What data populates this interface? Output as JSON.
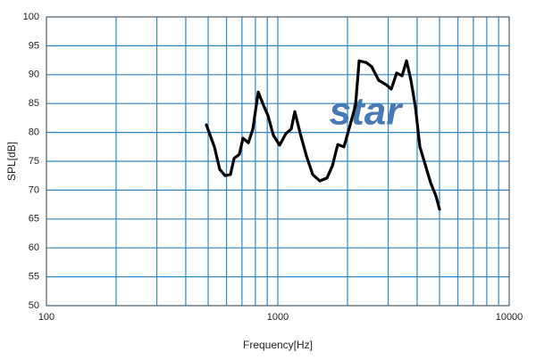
{
  "chart_data": {
    "type": "line",
    "x_label": "Frequency[Hz]",
    "y_label": "SPL[dB]",
    "watermark": "star",
    "xscale": "log",
    "grid": true,
    "xlim": [
      100,
      10000
    ],
    "ylim": [
      50,
      100
    ],
    "xticks": [
      100,
      1000,
      10000
    ],
    "x_minor_grid": [
      200,
      300,
      400,
      500,
      600,
      700,
      800,
      900,
      2000,
      3000,
      4000,
      5000,
      6000,
      7000,
      8000,
      9000
    ],
    "yticks": [
      50,
      55,
      60,
      65,
      70,
      75,
      80,
      85,
      90,
      95,
      100
    ],
    "series": [
      {
        "color": "#000000",
        "x": [
          491,
          532,
          561,
          592,
          624,
          647,
          682,
          707,
          746,
          780,
          823,
          867,
          907,
          957,
          1018,
          1084,
          1143,
          1184,
          1250,
          1330,
          1415,
          1519,
          1630,
          1721,
          1815,
          1931,
          2054,
          2167,
          2246,
          2411,
          2543,
          2731,
          2932,
          3092,
          3264,
          3443,
          3600,
          3762,
          3933,
          4111,
          4336,
          4574,
          4823,
          5000
        ],
        "values": [
          81.3,
          77.5,
          73.6,
          72.5,
          72.7,
          75.5,
          76.2,
          79.0,
          78.2,
          80.6,
          87.0,
          84.7,
          82.9,
          79.5,
          77.8,
          79.8,
          80.6,
          83.6,
          79.8,
          75.9,
          72.7,
          71.6,
          72.1,
          74.2,
          77.9,
          77.5,
          81.3,
          84.7,
          92.4,
          92.1,
          91.4,
          89.0,
          88.3,
          87.5,
          90.3,
          89.8,
          92.4,
          89.0,
          84.4,
          77.5,
          74.4,
          71.3,
          69.0,
          66.7
        ]
      }
    ]
  }
}
